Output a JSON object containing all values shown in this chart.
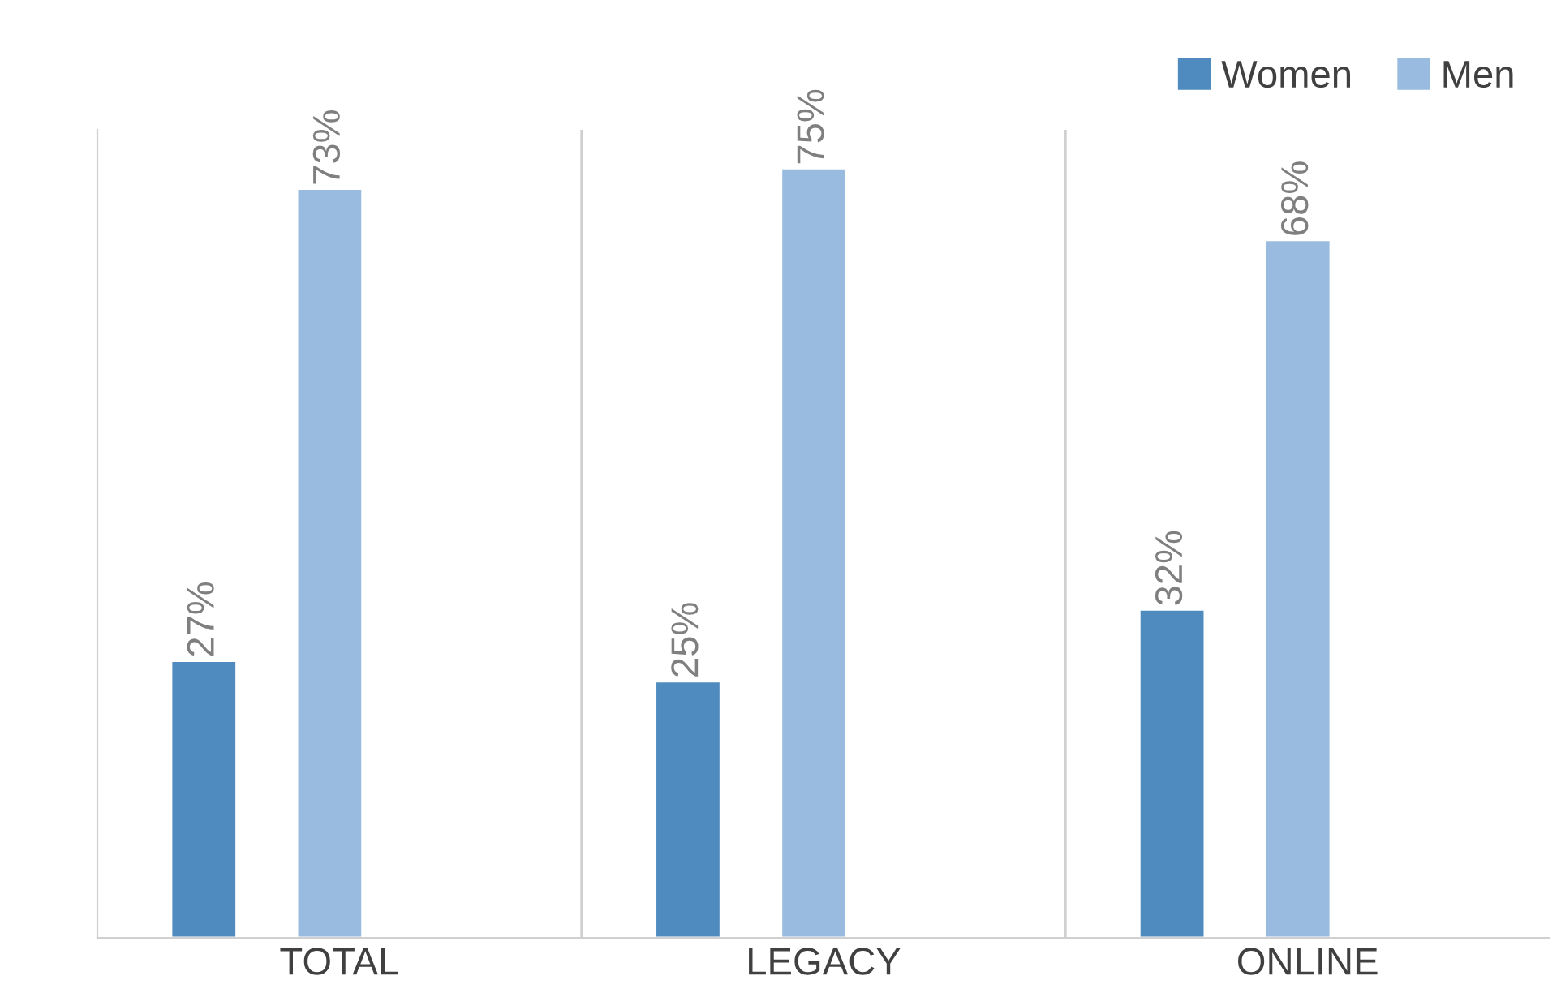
{
  "chart_data": {
    "type": "bar",
    "categories": [
      "TOTAL",
      "LEGACY",
      "ONLINE"
    ],
    "series": [
      {
        "name": "Women",
        "color": "#4f8bbf",
        "values": [
          27,
          25,
          32
        ],
        "value_labels": [
          "27%",
          "25%",
          "32%"
        ]
      },
      {
        "name": "Men",
        "color": "#9abbe0",
        "values": [
          73,
          75,
          68
        ],
        "value_labels": [
          "73%",
          "75%",
          "68%"
        ]
      }
    ],
    "tick_labels": "x",
    "legend": "top right"
  }
}
